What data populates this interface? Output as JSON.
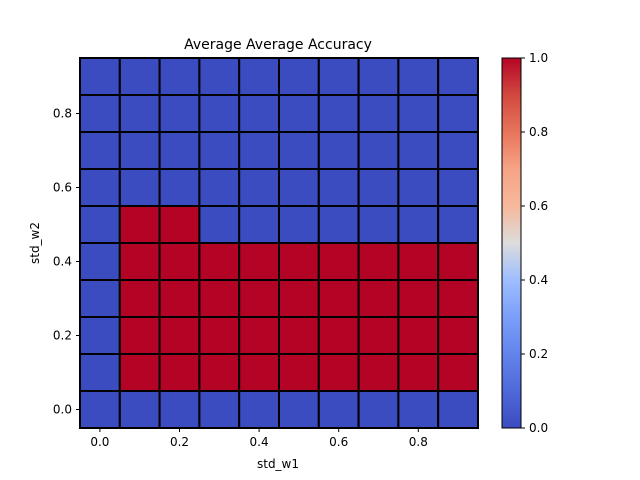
{
  "chart_data": {
    "type": "heatmap",
    "title": "Average Average Accuracy",
    "xlabel": "std_w1",
    "ylabel": "std_w2",
    "x": [
      0.0,
      0.1,
      0.2,
      0.3,
      0.4,
      0.5,
      0.6,
      0.7,
      0.8,
      0.9
    ],
    "y": [
      0.0,
      0.1,
      0.2,
      0.3,
      0.4,
      0.5,
      0.6,
      0.7,
      0.8,
      0.9
    ],
    "xlim": [
      -0.05,
      0.95
    ],
    "ylim": [
      -0.05,
      0.95
    ],
    "xticks": [
      "0.0",
      "0.2",
      "0.4",
      "0.6",
      "0.8"
    ],
    "xtick_values": [
      0.0,
      0.2,
      0.4,
      0.6,
      0.8
    ],
    "yticks": [
      "0.0",
      "0.2",
      "0.4",
      "0.6",
      "0.8"
    ],
    "ytick_values": [
      0.0,
      0.2,
      0.4,
      0.6,
      0.8
    ],
    "values": [
      [
        0,
        0,
        0,
        0,
        0,
        0,
        0,
        0,
        0,
        0
      ],
      [
        0,
        1,
        1,
        1,
        1,
        1,
        1,
        1,
        1,
        1
      ],
      [
        0,
        1,
        1,
        1,
        1,
        1,
        1,
        1,
        1,
        1
      ],
      [
        0,
        1,
        1,
        1,
        1,
        1,
        1,
        1,
        1,
        1
      ],
      [
        0,
        1,
        1,
        1,
        1,
        1,
        1,
        1,
        1,
        1
      ],
      [
        0,
        1,
        1,
        0,
        0,
        0,
        0,
        0,
        0,
        0
      ],
      [
        0,
        0,
        0,
        0,
        0,
        0,
        0,
        0,
        0,
        0
      ],
      [
        0,
        0,
        0,
        0,
        0,
        0,
        0,
        0,
        0,
        0
      ],
      [
        0,
        0,
        0,
        0,
        0,
        0,
        0,
        0,
        0,
        0
      ],
      [
        0,
        0,
        0,
        0,
        0,
        0,
        0,
        0,
        0,
        0
      ]
    ],
    "colormap": "coolwarm",
    "color_low": "#3b4cc0",
    "color_high": "#b40426",
    "cell_edge_color": "#000000",
    "colorbar": {
      "range": [
        0.0,
        1.0
      ],
      "ticks": [
        "0.0",
        "0.2",
        "0.4",
        "0.6",
        "0.8",
        "1.0"
      ],
      "tick_values": [
        0.0,
        0.2,
        0.4,
        0.6,
        0.8,
        1.0
      ]
    },
    "grid": false
  }
}
